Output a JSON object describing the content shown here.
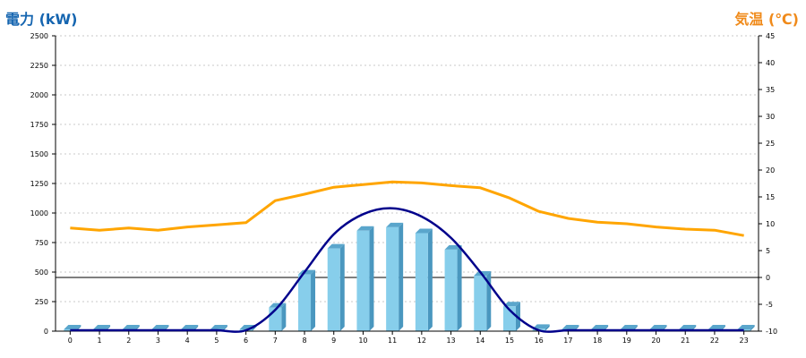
{
  "colors": {
    "left_axis_title": "#1565b0",
    "right_axis_title": "#f08a1a",
    "bar_front": "#87ceeb",
    "bar_side": "#4a97bf",
    "bar_top": "#5aa6cc",
    "power_curve": "#00008b",
    "temperature_line": "#ffa500",
    "grid": "#c8c8c8",
    "axis": "#000000"
  },
  "chart_data": {
    "type": "bar",
    "ylabel": "電力 (kW)",
    "y2label": "気温 (℃)",
    "categories": [
      "0",
      "1",
      "2",
      "3",
      "4",
      "5",
      "6",
      "7",
      "8",
      "9",
      "10",
      "11",
      "12",
      "13",
      "14",
      "15",
      "16",
      "17",
      "18",
      "19",
      "20",
      "21",
      "22",
      "23"
    ],
    "ylim": [
      0,
      2500
    ],
    "yticks": [
      "0",
      "250",
      "500",
      "750",
      "1000",
      "1250",
      "1500",
      "1750",
      "2000",
      "2250",
      "2500"
    ],
    "y2lim": [
      -10,
      45
    ],
    "y2ticks": [
      "-10",
      "-5",
      "0",
      "5",
      "10",
      "15",
      "20",
      "25",
      "30",
      "35",
      "40",
      "45"
    ],
    "grid": true,
    "series": [
      {
        "kind": "bar",
        "axis": "left",
        "values": [
          0,
          0,
          0,
          0,
          0,
          0,
          10,
          200,
          480,
          700,
          850,
          880,
          830,
          690,
          470,
          210,
          20,
          0,
          0,
          0,
          0,
          0,
          0,
          0
        ]
      },
      {
        "kind": "curve",
        "axis": "left",
        "values": [
          0,
          0,
          0,
          0,
          0,
          0,
          0,
          180,
          500,
          820,
          990,
          1040,
          970,
          790,
          500,
          180,
          0,
          0,
          0,
          0,
          0,
          0,
          0,
          0
        ]
      },
      {
        "kind": "line",
        "axis": "right",
        "values": [
          9.2,
          8.8,
          9.2,
          8.8,
          9.4,
          9.8,
          10.2,
          14.3,
          15.5,
          16.8,
          17.3,
          17.8,
          17.6,
          17.1,
          16.7,
          14.8,
          12.3,
          11.0,
          10.3,
          10.0,
          9.4,
          9.0,
          8.8,
          7.8
        ]
      }
    ]
  }
}
